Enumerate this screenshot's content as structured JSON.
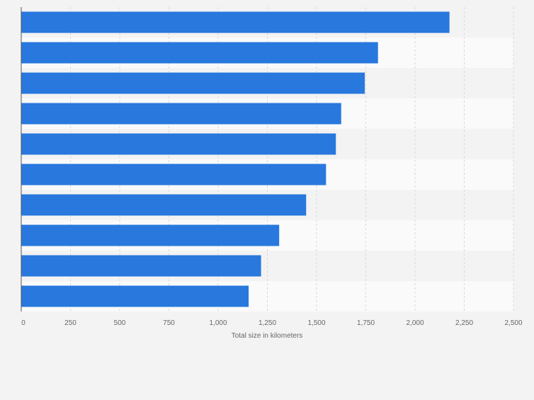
{
  "chart_data": {
    "type": "bar",
    "orientation": "horizontal",
    "categories": [
      "",
      "",
      "",
      "",
      "",
      "",
      "",
      "",
      "",
      ""
    ],
    "values": [
      2175,
      1812,
      1745,
      1625,
      1598,
      1548,
      1447,
      1310,
      1218,
      1155
    ],
    "title": "",
    "xlabel": "Total size in kilometers",
    "ylabel": "",
    "xlim": [
      0,
      2500
    ],
    "xticks": [
      0,
      250,
      500,
      750,
      1000,
      1250,
      1500,
      1750,
      2000,
      2250,
      2500
    ],
    "xtick_labels": [
      "0",
      "250",
      "500",
      "750",
      "1,000",
      "1,250",
      "1,500",
      "1,750",
      "2,000",
      "2,250",
      "2,500"
    ],
    "grid": true,
    "legend": "none",
    "colors": {
      "bar": "#2878de",
      "background": "#f3f3f3",
      "band_light": "#fafafa",
      "band_dark": "#f3f3f3",
      "grid": "#d8d8d8",
      "axis": "#555555",
      "tick_text": "#666666"
    }
  }
}
